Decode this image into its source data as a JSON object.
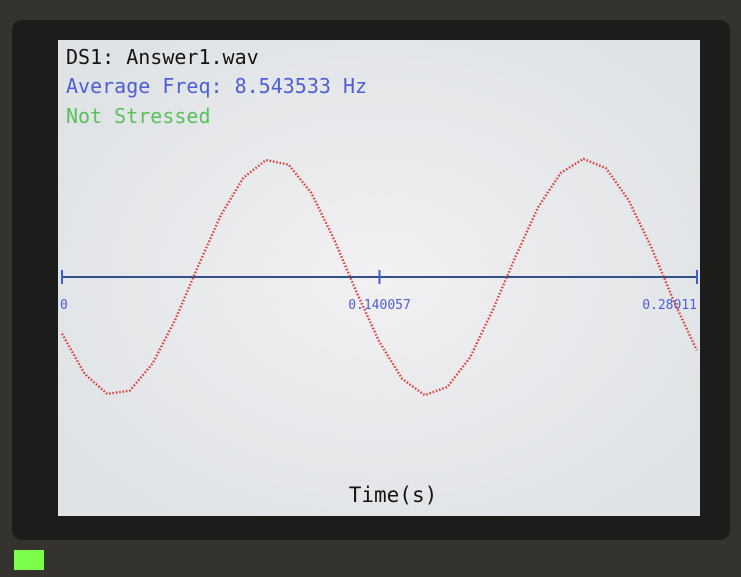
{
  "chart_data": {
    "type": "line",
    "title": "DS1: Answer1.wav",
    "subtitle": "Average Freq: 8.543533 Hz",
    "annotation": "Not Stressed",
    "xlabel": "Time(s)",
    "xlim": [
      0,
      0.28011
    ],
    "xticks": [
      0,
      0.140057,
      0.28011
    ],
    "ylim": [
      -1.1,
      1.1
    ],
    "x": [
      0,
      0.01,
      0.02,
      0.03,
      0.04,
      0.05,
      0.06,
      0.07,
      0.08,
      0.09,
      0.1,
      0.11,
      0.12,
      0.13,
      0.14,
      0.15,
      0.16,
      0.17,
      0.18,
      0.19,
      0.2,
      0.21,
      0.22,
      0.23,
      0.24,
      0.25,
      0.26,
      0.27,
      0.28
    ],
    "series": [
      {
        "color": "#d9423c",
        "values": [
          -0.48,
          -0.82,
          -0.99,
          -0.96,
          -0.73,
          -0.36,
          0.09,
          0.52,
          0.84,
          0.99,
          0.95,
          0.71,
          0.32,
          -0.13,
          -0.55,
          -0.86,
          -1.0,
          -0.93,
          -0.68,
          -0.28,
          0.17,
          0.59,
          0.88,
          1.0,
          0.92,
          0.65,
          0.25,
          -0.21,
          -0.62
        ]
      }
    ]
  }
}
